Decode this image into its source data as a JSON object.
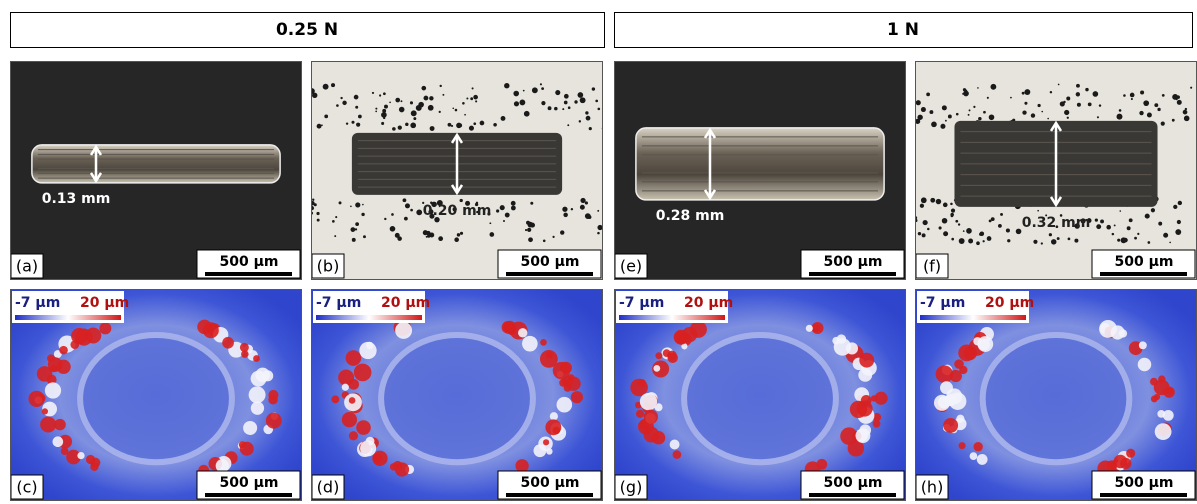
{
  "headers": [
    "0.25 N",
    "1 N"
  ],
  "rows": [
    [
      {
        "label": "(a)",
        "scale_bar": "500 µm",
        "measurement": "0.13 mm"
      },
      {
        "label": "(b)",
        "scale_bar": "500 µm",
        "measurement": "0.20 mm"
      },
      {
        "label": "(e)",
        "scale_bar": "500 µm",
        "measurement": "0.28 mm"
      },
      {
        "label": "(f)",
        "scale_bar": "500 µm",
        "measurement": "0.32 mm"
      }
    ],
    [
      {
        "label": "(c)",
        "scale_bar": "500 µm",
        "colorbar": {
          "min": "-7 µm",
          "max": "20 µm"
        }
      },
      {
        "label": "(d)",
        "scale_bar": "500 µm",
        "colorbar": {
          "min": "-7 µm",
          "max": "20 µm"
        }
      },
      {
        "label": "(g)",
        "scale_bar": "500 µm",
        "colorbar": {
          "min": "-7 µm",
          "max": "20 µm"
        }
      },
      {
        "label": "(h)",
        "scale_bar": "500 µm",
        "colorbar": {
          "min": "-7 µm",
          "max": "20 µm"
        }
      }
    ]
  ]
}
